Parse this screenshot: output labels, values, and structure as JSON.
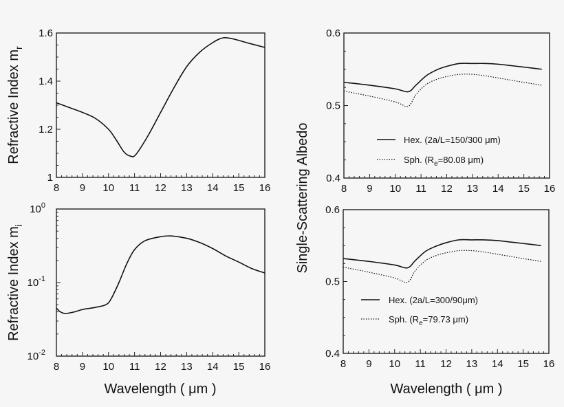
{
  "chart_data": [
    {
      "id": "refr-real",
      "type": "line",
      "xlabel": "",
      "ylabel": "Refractive Index m",
      "ylabel_sub": "r",
      "xlim": [
        8,
        16
      ],
      "ylim": [
        1.0,
        1.6
      ],
      "yscale": "linear",
      "xticks": [
        "8",
        "9",
        "10",
        "11",
        "12",
        "13",
        "14",
        "15",
        "16"
      ],
      "yticks": [
        {
          "v": 1.0,
          "label": "1"
        },
        {
          "v": 1.2,
          "label": "1.2"
        },
        {
          "v": 1.4,
          "label": "1.4"
        },
        {
          "v": 1.6,
          "label": "1.6"
        }
      ],
      "grid": false,
      "series": [
        {
          "style": "solid",
          "x": [
            8,
            8.5,
            9,
            9.5,
            10,
            10.3,
            10.6,
            10.85,
            11.05,
            11.5,
            12,
            12.5,
            13,
            13.5,
            14,
            14.4,
            14.8,
            15.3,
            16
          ],
          "y": [
            1.31,
            1.29,
            1.27,
            1.245,
            1.2,
            1.155,
            1.105,
            1.088,
            1.095,
            1.17,
            1.27,
            1.37,
            1.46,
            1.52,
            1.56,
            1.58,
            1.575,
            1.56,
            1.54
          ]
        }
      ]
    },
    {
      "id": "refr-imag",
      "type": "line",
      "xlabel": "Wavelength ( μm )",
      "ylabel": "Refractive Index m",
      "ylabel_sub": "i",
      "xlim": [
        8,
        16
      ],
      "ylim": [
        0.01,
        1
      ],
      "yscale": "log",
      "xticks": [
        "8",
        "9",
        "10",
        "11",
        "12",
        "13",
        "14",
        "15",
        "16"
      ],
      "yticks": [
        {
          "v": 1,
          "label": "10",
          "exp": "0"
        },
        {
          "v": 0.1,
          "label": "10",
          "exp": "-1"
        },
        {
          "v": 0.01,
          "label": "10",
          "exp": "-2"
        }
      ],
      "grid": false,
      "series": [
        {
          "style": "solid",
          "x": [
            8,
            8.15,
            8.35,
            8.7,
            9,
            9.5,
            9.9,
            10.1,
            10.4,
            10.7,
            11,
            11.4,
            12,
            12.4,
            13,
            13.5,
            14,
            14.5,
            15,
            15.5,
            16
          ],
          "y": [
            0.045,
            0.04,
            0.038,
            0.04,
            0.043,
            0.046,
            0.05,
            0.06,
            0.1,
            0.18,
            0.28,
            0.37,
            0.42,
            0.43,
            0.4,
            0.35,
            0.29,
            0.23,
            0.19,
            0.155,
            0.135
          ]
        }
      ]
    },
    {
      "id": "albedo-top",
      "type": "line",
      "xlabel": "",
      "ylabel": "Single-Scattering Albedo",
      "xlim": [
        8,
        16
      ],
      "ylim": [
        0.4,
        0.6
      ],
      "yscale": "linear",
      "xticks": [
        "8",
        "9",
        "10",
        "11",
        "12",
        "13",
        "14",
        "15",
        "16"
      ],
      "yticks": [
        {
          "v": 0.4,
          "label": "0.4"
        },
        {
          "v": 0.5,
          "label": "0.5"
        },
        {
          "v": 0.6,
          "label": "0.6"
        }
      ],
      "grid": false,
      "legend_placement": "lower-center",
      "series": [
        {
          "style": "solid",
          "name_main": "Hex. (2a/L=150/300 μm)",
          "name_sub": "",
          "name_rest": "",
          "x": [
            8,
            9,
            10,
            10.5,
            10.8,
            11.2,
            11.6,
            12,
            12.5,
            13,
            13.5,
            14,
            14.5,
            15,
            15.7
          ],
          "y": [
            0.532,
            0.528,
            0.523,
            0.519,
            0.528,
            0.541,
            0.549,
            0.554,
            0.558,
            0.558,
            0.558,
            0.557,
            0.555,
            0.553,
            0.55
          ]
        },
        {
          "style": "dotted",
          "name_main": "Sph. (R",
          "name_sub": "e",
          "name_rest": "=80.08 μm)",
          "x": [
            8,
            9,
            10,
            10.5,
            10.8,
            11.2,
            11.6,
            12,
            12.5,
            13,
            13.5,
            14,
            14.5,
            15,
            15.7
          ],
          "y": [
            0.52,
            0.513,
            0.505,
            0.499,
            0.515,
            0.529,
            0.536,
            0.54,
            0.543,
            0.543,
            0.541,
            0.538,
            0.535,
            0.532,
            0.528
          ]
        }
      ]
    },
    {
      "id": "albedo-bottom",
      "type": "line",
      "xlabel": "Wavelength ( μm )",
      "ylabel": "Single-Scattering Albedo",
      "xlim": [
        8,
        16
      ],
      "ylim": [
        0.4,
        0.6
      ],
      "yscale": "linear",
      "xticks": [
        "8",
        "9",
        "10",
        "11",
        "12",
        "13",
        "14",
        "15",
        "16"
      ],
      "yticks": [
        {
          "v": 0.4,
          "label": "0.4"
        },
        {
          "v": 0.5,
          "label": "0.5"
        },
        {
          "v": 0.6,
          "label": "0.6"
        }
      ],
      "grid": false,
      "legend_placement": "center-left",
      "series": [
        {
          "style": "solid",
          "name_main": "Hex. (2a/L=300/90μm)",
          "name_sub": "",
          "name_rest": "",
          "x": [
            8,
            9,
            10,
            10.5,
            10.8,
            11.2,
            11.6,
            12,
            12.5,
            13,
            13.5,
            14,
            14.5,
            15,
            15.7
          ],
          "y": [
            0.532,
            0.528,
            0.523,
            0.519,
            0.529,
            0.542,
            0.549,
            0.554,
            0.558,
            0.558,
            0.558,
            0.557,
            0.555,
            0.553,
            0.55
          ]
        },
        {
          "style": "dotted",
          "name_main": "Sph. (R",
          "name_sub": "e",
          "name_rest": "=79.73 μm)",
          "x": [
            8,
            9,
            10,
            10.5,
            10.8,
            11.2,
            11.6,
            12,
            12.5,
            13,
            13.5,
            14,
            14.5,
            15,
            15.7
          ],
          "y": [
            0.52,
            0.513,
            0.505,
            0.499,
            0.515,
            0.529,
            0.536,
            0.54,
            0.543,
            0.543,
            0.541,
            0.538,
            0.535,
            0.532,
            0.528
          ]
        }
      ]
    }
  ]
}
